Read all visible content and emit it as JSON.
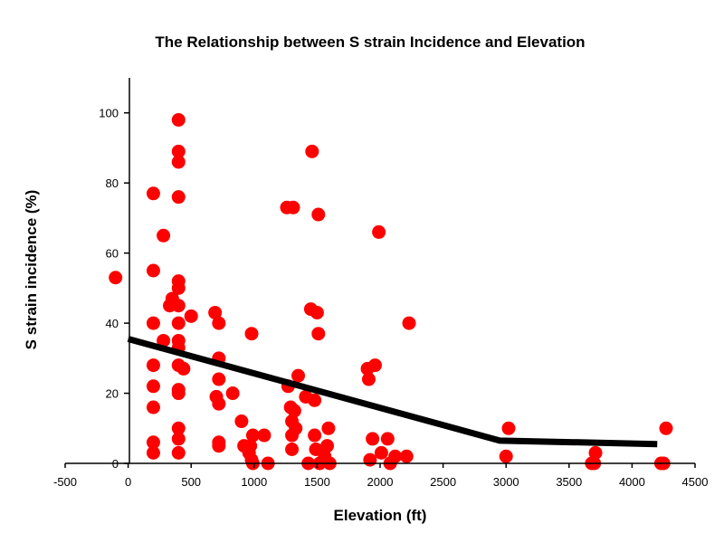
{
  "chart_data": {
    "type": "scatter",
    "title": "The Relationship between S strain Incidence and Elevation",
    "xlabel": "Elevation (ft)",
    "ylabel": "S strain incidence (%)",
    "xlim": [
      -500,
      4500
    ],
    "ylim": [
      0,
      110
    ],
    "xticks": [
      "-500",
      "0",
      "500",
      "1000",
      "1500",
      "2000",
      "2500",
      "3000",
      "3500",
      "4000",
      "4500"
    ],
    "yticks": [
      "0",
      "20",
      "40",
      "60",
      "80",
      "100"
    ],
    "grid": false,
    "legend": "none",
    "colors": {
      "points": "#ff0000",
      "trend": "#000000"
    },
    "points": [
      [
        -100,
        53
      ],
      [
        200,
        77
      ],
      [
        200,
        55
      ],
      [
        200,
        40
      ],
      [
        200,
        28
      ],
      [
        200,
        22
      ],
      [
        200,
        16
      ],
      [
        200,
        6
      ],
      [
        200,
        3
      ],
      [
        280,
        65
      ],
      [
        280,
        35
      ],
      [
        330,
        45
      ],
      [
        350,
        47
      ],
      [
        400,
        98
      ],
      [
        400,
        89
      ],
      [
        400,
        86
      ],
      [
        400,
        76
      ],
      [
        400,
        52
      ],
      [
        400,
        50
      ],
      [
        400,
        45
      ],
      [
        400,
        40
      ],
      [
        400,
        35
      ],
      [
        400,
        33
      ],
      [
        400,
        28
      ],
      [
        400,
        21
      ],
      [
        400,
        20
      ],
      [
        400,
        10
      ],
      [
        400,
        7
      ],
      [
        400,
        3
      ],
      [
        440,
        27
      ],
      [
        500,
        42
      ],
      [
        690,
        43
      ],
      [
        700,
        19
      ],
      [
        720,
        40
      ],
      [
        720,
        30
      ],
      [
        720,
        24
      ],
      [
        720,
        17
      ],
      [
        720,
        6
      ],
      [
        720,
        5
      ],
      [
        830,
        20
      ],
      [
        980,
        37
      ],
      [
        900,
        12
      ],
      [
        920,
        5
      ],
      [
        960,
        3
      ],
      [
        970,
        5
      ],
      [
        990,
        8
      ],
      [
        980,
        1
      ],
      [
        990,
        0
      ],
      [
        1080,
        8
      ],
      [
        1110,
        0
      ],
      [
        1260,
        73
      ],
      [
        1310,
        73
      ],
      [
        1270,
        22
      ],
      [
        1290,
        16
      ],
      [
        1300,
        12
      ],
      [
        1300,
        8
      ],
      [
        1300,
        4
      ],
      [
        1320,
        15
      ],
      [
        1330,
        10
      ],
      [
        1350,
        25
      ],
      [
        1410,
        19
      ],
      [
        1430,
        0
      ],
      [
        1460,
        89
      ],
      [
        1450,
        44
      ],
      [
        1500,
        43
      ],
      [
        1510,
        71
      ],
      [
        1510,
        37
      ],
      [
        1480,
        18
      ],
      [
        1480,
        8
      ],
      [
        1490,
        4
      ],
      [
        1520,
        0
      ],
      [
        1560,
        2
      ],
      [
        1590,
        10
      ],
      [
        1580,
        5
      ],
      [
        1600,
        0
      ],
      [
        1900,
        27
      ],
      [
        1910,
        24
      ],
      [
        1920,
        1
      ],
      [
        1940,
        7
      ],
      [
        1960,
        28
      ],
      [
        1990,
        66
      ],
      [
        2010,
        3
      ],
      [
        2060,
        7
      ],
      [
        2080,
        0
      ],
      [
        2120,
        2
      ],
      [
        2210,
        2
      ],
      [
        2230,
        40
      ],
      [
        3000,
        2
      ],
      [
        3020,
        10
      ],
      [
        3680,
        0
      ],
      [
        3700,
        0
      ],
      [
        3710,
        3
      ],
      [
        4230,
        0
      ],
      [
        4250,
        0
      ],
      [
        4270,
        10
      ]
    ],
    "trend_line": [
      [
        0,
        35.5
      ],
      [
        2950,
        6.5
      ],
      [
        4200,
        5.5
      ]
    ]
  }
}
